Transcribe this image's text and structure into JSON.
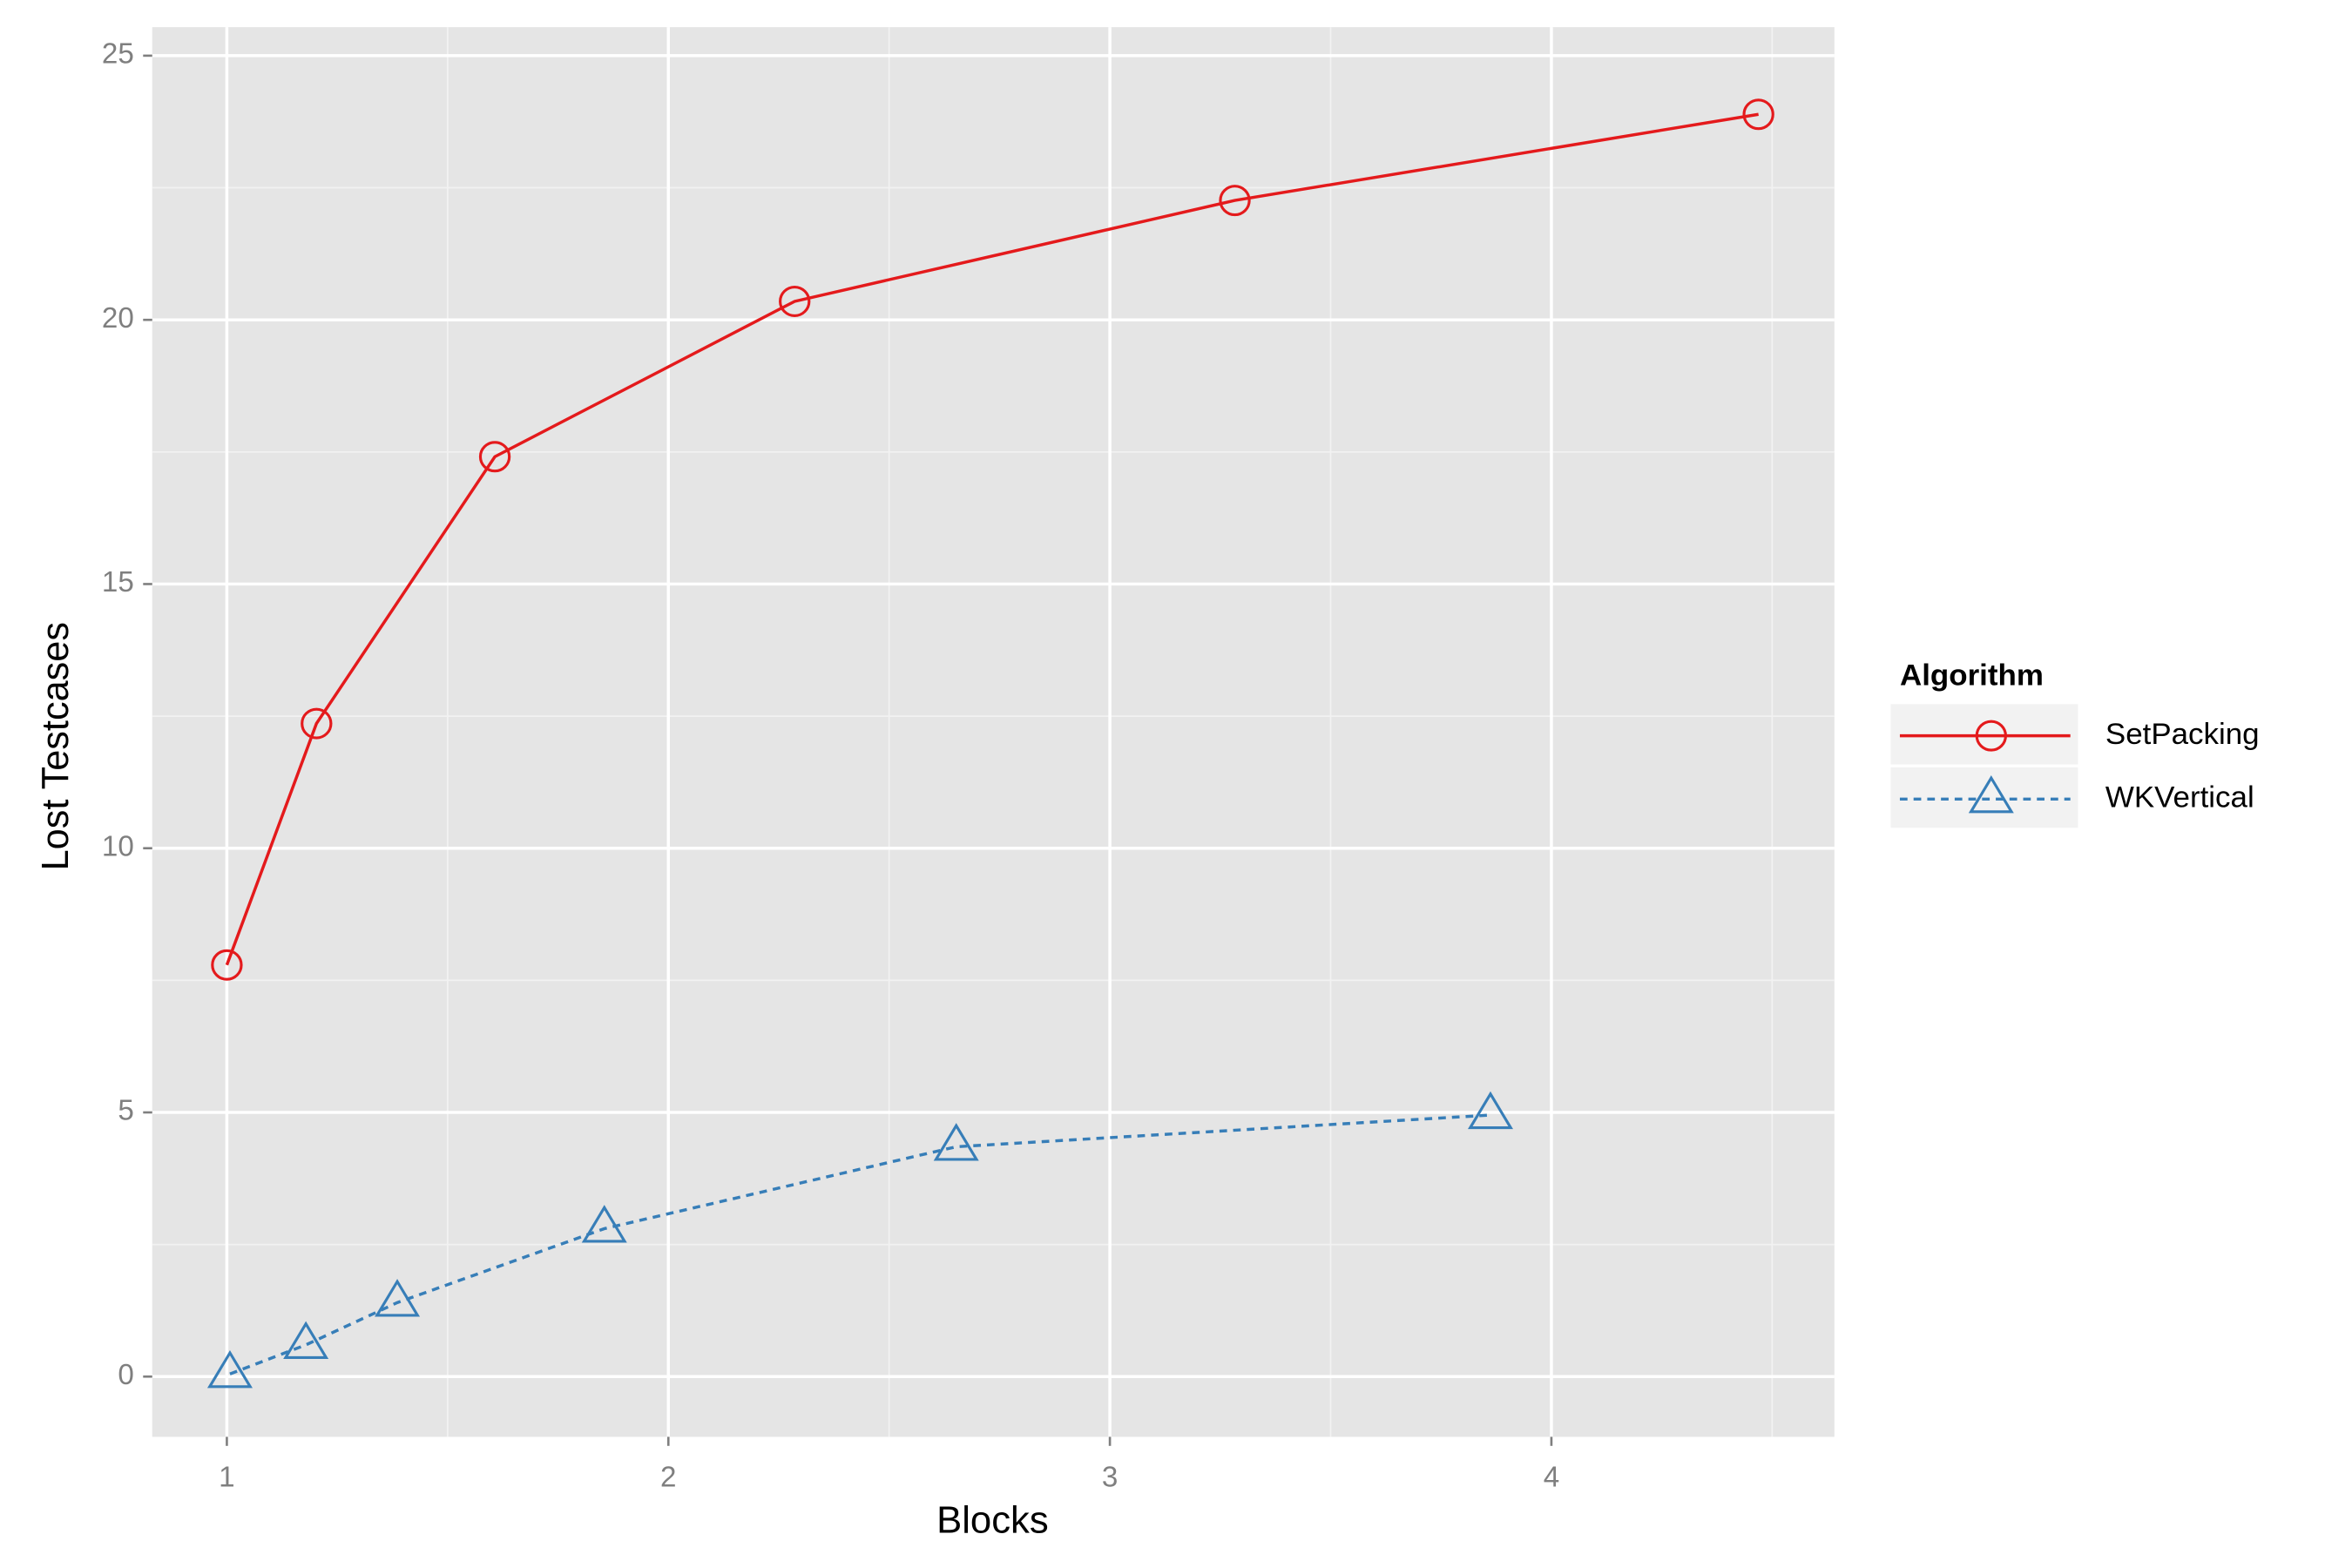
{
  "chart_data": {
    "type": "line",
    "x_label": "Blocks",
    "y_label": "Lost Testcases",
    "legend_title": "Algorithm",
    "legend": "right",
    "xlim": [
      0.831,
      4.641
    ],
    "ylim": [
      -1.14,
      25.54
    ],
    "xticks": [
      1,
      2,
      3,
      4
    ],
    "yticks": [
      0,
      5,
      10,
      15,
      20,
      25
    ],
    "grid": true,
    "minor_grid": true,
    "series": [
      {
        "name": "SetPacking",
        "color": "#e41a1c",
        "linestyle": "solid",
        "marker": "circle",
        "x": [
          1.0,
          1.203,
          1.607,
          2.286,
          3.283,
          4.469
        ],
        "values": [
          7.79,
          12.36,
          17.41,
          20.35,
          22.26,
          23.89
        ]
      },
      {
        "name": "WKVertical",
        "color": "#377eb8",
        "linestyle": "dashed",
        "marker": "triangle",
        "x": [
          1.007,
          1.179,
          1.386,
          1.855,
          2.652,
          3.862
        ],
        "values": [
          0.05,
          0.6,
          1.4,
          2.8,
          4.35,
          4.95
        ]
      }
    ]
  }
}
